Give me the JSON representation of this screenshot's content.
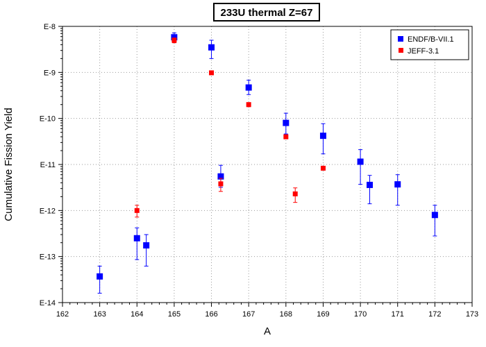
{
  "chart_data": {
    "type": "scatter",
    "title": "233U thermal Z=67",
    "xlabel": "A",
    "ylabel": "Cumulative Fission Yield",
    "xlim": [
      162,
      173
    ],
    "ylim": [
      1e-14,
      1e-08
    ],
    "y_scale": "log",
    "x_ticks": [
      "162",
      "163",
      "164",
      "165",
      "166",
      "167",
      "168",
      "169",
      "170",
      "171",
      "172",
      "173"
    ],
    "y_ticks": [
      "E-14",
      "E-13",
      "E-12",
      "E-11",
      "E-10",
      "E-9",
      "E-8"
    ],
    "grid": true,
    "legend_position": "top-right",
    "series": [
      {
        "name": "ENDF/B-VII.1",
        "color": "#0000ff",
        "marker": "square",
        "points": [
          {
            "x": 163,
            "y": 3.7e-14,
            "ylo": 1.6e-14,
            "yhi": 6.2e-14
          },
          {
            "x": 164,
            "y": 2.5e-13,
            "ylo": 8.6e-14,
            "yhi": 4.2e-13
          },
          {
            "x": 164.25,
            "y": 1.75e-13,
            "ylo": 6.2e-14,
            "yhi": 3e-13
          },
          {
            "x": 165,
            "y": 5.8e-09,
            "ylo": 4.6e-09,
            "yhi": 7.2e-09
          },
          {
            "x": 166,
            "y": 3.5e-09,
            "ylo": 2e-09,
            "yhi": 5e-09
          },
          {
            "x": 166.25,
            "y": 5.5e-12,
            "ylo": 3.2e-12,
            "yhi": 9.6e-12
          },
          {
            "x": 167,
            "y": 4.7e-10,
            "ylo": 3.3e-10,
            "yhi": 6.8e-10
          },
          {
            "x": 168,
            "y": 8e-11,
            "ylo": 4.6e-11,
            "yhi": 1.3e-10
          },
          {
            "x": 169,
            "y": 4.2e-11,
            "ylo": 1.7e-11,
            "yhi": 7.7e-11
          },
          {
            "x": 170,
            "y": 1.15e-11,
            "ylo": 3.7e-12,
            "yhi": 2.1e-11
          },
          {
            "x": 170.25,
            "y": 3.6e-12,
            "ylo": 1.4e-12,
            "yhi": 5.8e-12
          },
          {
            "x": 171,
            "y": 3.7e-12,
            "ylo": 1.3e-12,
            "yhi": 6e-12
          },
          {
            "x": 172,
            "y": 8e-13,
            "ylo": 2.8e-13,
            "yhi": 1.3e-12
          }
        ]
      },
      {
        "name": "JEFF-3.1",
        "color": "#ff0000",
        "marker": "square",
        "points": [
          {
            "x": 164,
            "y": 1e-12,
            "ylo": 7.2e-13,
            "yhi": 1.3e-12
          },
          {
            "x": 165,
            "y": 5e-09,
            "ylo": 4.4e-09,
            "yhi": 5.6e-09
          },
          {
            "x": 166,
            "y": 9.8e-10,
            "ylo": 9.4e-10,
            "yhi": 1.02e-09
          },
          {
            "x": 166.25,
            "y": 3.8e-12,
            "ylo": 2.6e-12,
            "yhi": 5e-12
          },
          {
            "x": 167,
            "y": 2e-10,
            "ylo": 1.8e-10,
            "yhi": 2.2e-10
          },
          {
            "x": 168,
            "y": 4e-11,
            "ylo": 3.6e-11,
            "yhi": 4.4e-11
          },
          {
            "x": 168.25,
            "y": 2.3e-12,
            "ylo": 1.5e-12,
            "yhi": 3.1e-12
          },
          {
            "x": 169,
            "y": 8.3e-12,
            "ylo": 7.6e-12,
            "yhi": 9e-12
          }
        ]
      }
    ]
  }
}
